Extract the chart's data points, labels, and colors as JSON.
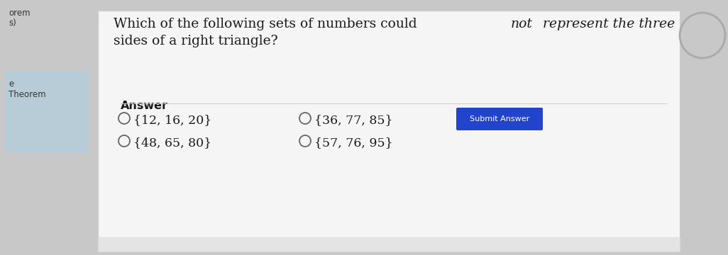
{
  "bg_outer": "#c8c8c8",
  "bg_panel": "#ebebeb",
  "bg_white": "#f5f5f5",
  "left_sidebar_color": "#b8ccd8",
  "text_color": "#1a1a1a",
  "answer_label": "Answer",
  "q_line1_pre": "Which of the following sets of numbers could ",
  "q_not": "not",
  "q_line1_post": " represent the three",
  "q_line2": "sides of a right triangle?",
  "options": [
    "{12, 16, 20}",
    "{36, 77, 85}",
    "{48, 65, 80}",
    "{57, 76, 95}"
  ],
  "submit_text": "Submit Answer",
  "submit_bg": "#2244cc",
  "submit_text_color": "#ffffff",
  "circle_edge": "#aaaaaa",
  "panel_edge": "#cccccc"
}
